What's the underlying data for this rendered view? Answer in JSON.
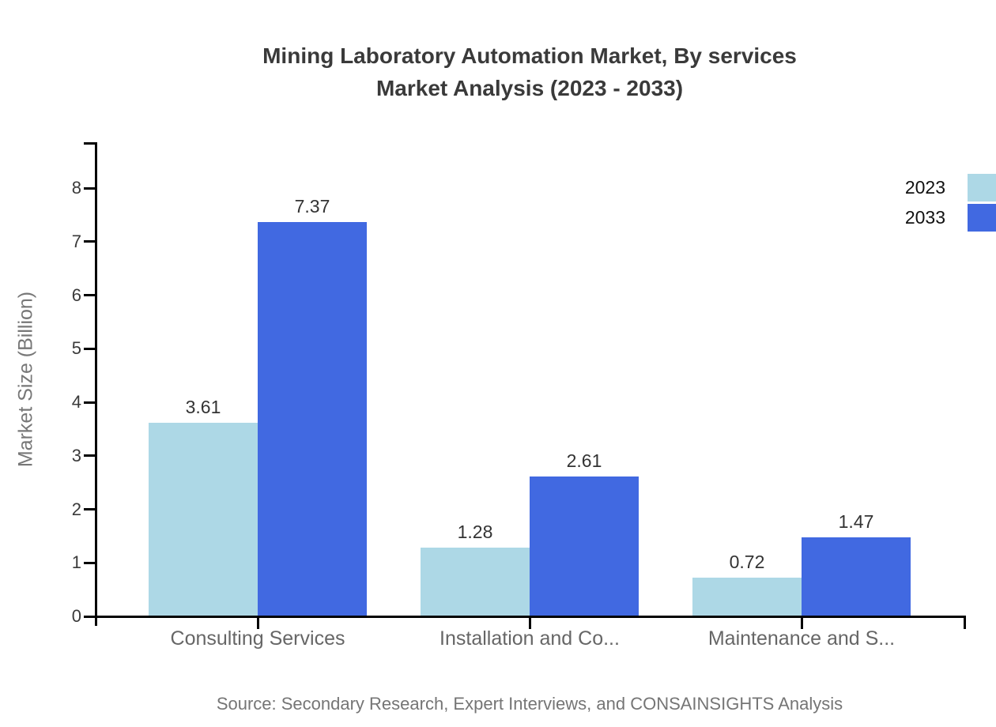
{
  "title": {
    "line1": "Mining Laboratory Automation Market, By services",
    "line2": "Market Analysis (2023 - 2033)"
  },
  "source": "Source: Secondary Research, Expert Interviews, and CONSAINSIGHTS Analysis",
  "chart_data": {
    "type": "bar",
    "title": "Mining Laboratory Automation Market, By services Market Analysis (2023 - 2033)",
    "xlabel": "",
    "ylabel": "Market Size (Billion)",
    "categories": [
      "Consulting Services",
      "Installation and Co...",
      "Maintenance and S..."
    ],
    "series": [
      {
        "name": "2023",
        "color": "#ADD8E6",
        "values": [
          3.61,
          1.28,
          0.72
        ]
      },
      {
        "name": "2033",
        "color": "#4169E1",
        "values": [
          7.37,
          2.61,
          1.47
        ]
      }
    ],
    "ylim": [
      0,
      8.85
    ],
    "yticks": [
      0,
      1,
      2,
      3,
      4,
      5,
      6,
      7,
      8
    ],
    "grid": false,
    "value_labels": true,
    "legend_position": "top-right"
  },
  "colors": {
    "axis": "#000000",
    "title_text": "#3a3a3a",
    "tick_label": "#3a3a3a",
    "category_label": "#666666",
    "value_label": "#333333",
    "legend_label": "#111111",
    "ylabel_text": "#777777",
    "source_text": "#757575",
    "background": "#ffffff"
  }
}
